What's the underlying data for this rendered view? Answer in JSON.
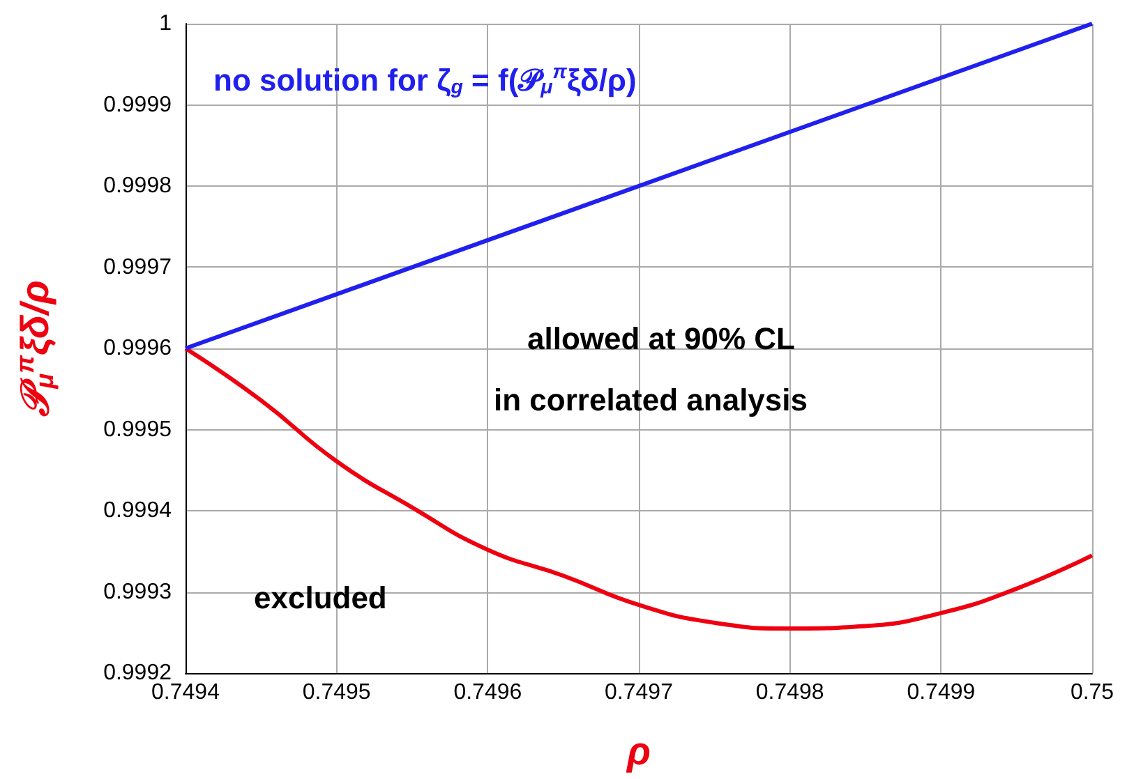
{
  "chart_data": {
    "type": "line",
    "xlabel": "ρ",
    "ylabel": "𝒫$_{μ}$$^{π}$ξδ/ρ",
    "x": [
      0.7494,
      0.74945,
      0.7495,
      0.74955,
      0.7496,
      0.74965,
      0.7497,
      0.74975,
      0.7498,
      0.74985,
      0.7499,
      0.74995,
      0.75
    ],
    "series": [
      {
        "color": "#2020ee",
        "x": [
          0.7494,
          0.75
        ],
        "values": [
          0.9996,
          1
        ]
      },
      {
        "color": "#ee0010",
        "values": [
          0.9996,
          0.999536,
          0.999461,
          0.999404,
          0.999352,
          0.99932,
          0.999284,
          0.999262,
          0.999255,
          0.999258,
          0.999274,
          0.999304,
          0.999345
        ]
      }
    ],
    "xlim": [
      0.7494,
      0.75
    ],
    "xticks": [
      0.7494,
      0.7495,
      0.7496,
      0.7497,
      0.7498,
      0.7499,
      0.75
    ],
    "ylim": [
      0.9992,
      1
    ],
    "yticks": [
      0.9992,
      0.9993,
      0.9994,
      0.9995,
      0.9996,
      0.9997,
      0.9998,
      0.9999,
      1
    ],
    "annotations": [
      "no solution for ζ$_{g}$ = f(𝒫$_{μ}$$^{π}$ξδ/ρ)",
      "allowed at 90% CL",
      "in correlated analysis",
      "excluded"
    ],
    "grid": true,
    "marker": "none",
    "line_style": "solid"
  }
}
